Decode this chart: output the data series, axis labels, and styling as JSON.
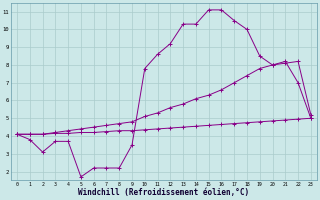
{
  "background_color": "#cce8e8",
  "grid_color": "#aacccc",
  "line_color": "#880088",
  "xlim": [
    -0.5,
    23.5
  ],
  "ylim": [
    1.5,
    11.5
  ],
  "xlabel": "Windchill (Refroidissement éolien,°C)",
  "xlabel_fontsize": 5.5,
  "ytick_vals": [
    2,
    3,
    4,
    5,
    6,
    7,
    8,
    9,
    10,
    11
  ],
  "ytick_labels": [
    "2",
    "3",
    "4",
    "5",
    "6",
    "7",
    "8",
    "9",
    "10",
    "11"
  ],
  "xtick_labels": [
    "0",
    "1",
    "2",
    "3",
    "4",
    "5",
    "6",
    "7",
    "8",
    "9",
    "10",
    "11",
    "12",
    "13",
    "14",
    "15",
    "16",
    "17",
    "18",
    "19",
    "20",
    "21",
    "22",
    "23"
  ],
  "line1_x": [
    0,
    1,
    2,
    3,
    4,
    5,
    6,
    7,
    8,
    9,
    10,
    11,
    12,
    13,
    14,
    15,
    16,
    17,
    18,
    19,
    20,
    21,
    22,
    23
  ],
  "line1_y": [
    4.1,
    3.8,
    3.1,
    3.7,
    3.7,
    1.7,
    2.2,
    2.2,
    2.2,
    3.5,
    7.8,
    8.6,
    9.2,
    10.3,
    10.3,
    11.1,
    11.1,
    10.5,
    10.0,
    8.5,
    8.0,
    8.2,
    7.0,
    5.0
  ],
  "line2_x": [
    0,
    1,
    2,
    3,
    4,
    5,
    6,
    7,
    8,
    9,
    10,
    11,
    12,
    13,
    14,
    15,
    16,
    17,
    18,
    19,
    20,
    21,
    22,
    23
  ],
  "line2_y": [
    4.1,
    4.1,
    4.1,
    4.15,
    4.15,
    4.2,
    4.2,
    4.25,
    4.3,
    4.3,
    4.35,
    4.4,
    4.45,
    4.5,
    4.55,
    4.6,
    4.65,
    4.7,
    4.75,
    4.8,
    4.85,
    4.9,
    4.95,
    5.0
  ],
  "line3_x": [
    0,
    1,
    2,
    3,
    4,
    5,
    6,
    7,
    8,
    9,
    10,
    11,
    12,
    13,
    14,
    15,
    16,
    17,
    18,
    19,
    20,
    21,
    22,
    23
  ],
  "line3_y": [
    4.1,
    4.1,
    4.1,
    4.2,
    4.3,
    4.4,
    4.5,
    4.6,
    4.7,
    4.8,
    5.1,
    5.3,
    5.6,
    5.8,
    6.1,
    6.3,
    6.6,
    7.0,
    7.4,
    7.8,
    8.0,
    8.1,
    8.2,
    5.2
  ],
  "marker": "+",
  "markersize": 2.5,
  "linewidth": 0.7
}
